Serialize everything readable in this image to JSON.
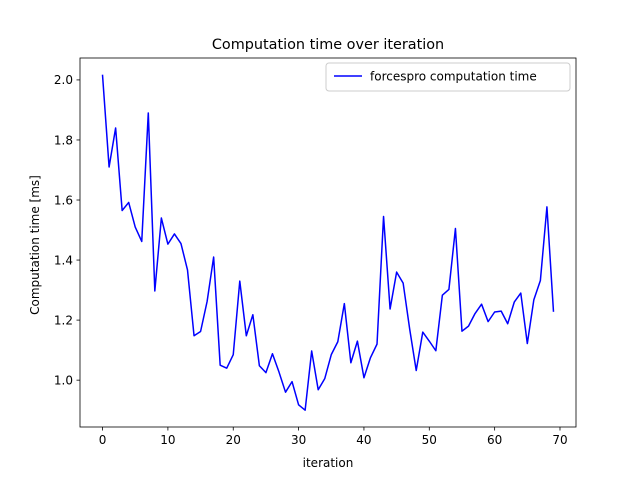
{
  "chart_data": {
    "type": "line",
    "title": "Computation time over iteration",
    "xlabel": "iteration",
    "ylabel": "Computation time [ms]",
    "xlim": [
      -3.45,
      72.45
    ],
    "ylim": [
      0.844,
      2.073
    ],
    "xticks": [
      0,
      10,
      20,
      30,
      40,
      50,
      60,
      70
    ],
    "yticks": [
      1.0,
      1.2,
      1.4,
      1.6,
      1.8,
      2.0
    ],
    "ytick_labels": [
      "1.0",
      "1.2",
      "1.4",
      "1.6",
      "1.8",
      "2.0"
    ],
    "grid": false,
    "legend_position": "upper right",
    "series": [
      {
        "name": "forcespro computation time",
        "color": "#0000ff",
        "x": [
          0,
          1,
          2,
          3,
          4,
          5,
          6,
          7,
          8,
          9,
          10,
          11,
          12,
          13,
          14,
          15,
          16,
          17,
          18,
          19,
          20,
          21,
          22,
          23,
          24,
          25,
          26,
          27,
          28,
          29,
          30,
          31,
          32,
          33,
          34,
          35,
          36,
          37,
          38,
          39,
          40,
          41,
          42,
          43,
          44,
          45,
          46,
          47,
          48,
          49,
          50,
          51,
          52,
          53,
          54,
          55,
          56,
          57,
          58,
          59,
          60,
          61,
          62,
          63,
          64,
          65,
          66,
          67,
          68,
          69
        ],
        "values": [
          2.015,
          1.71,
          1.84,
          1.565,
          1.592,
          1.51,
          1.462,
          1.89,
          1.297,
          1.54,
          1.453,
          1.487,
          1.455,
          1.367,
          1.148,
          1.162,
          1.262,
          1.41,
          1.05,
          1.04,
          1.085,
          1.33,
          1.148,
          1.218,
          1.048,
          1.025,
          1.088,
          1.027,
          0.96,
          0.995,
          0.918,
          0.9,
          1.097,
          0.968,
          1.005,
          1.085,
          1.128,
          1.255,
          1.058,
          1.13,
          1.008,
          1.075,
          1.12,
          1.545,
          1.237,
          1.36,
          1.323,
          1.17,
          1.032,
          1.16,
          1.13,
          1.098,
          1.283,
          1.302,
          1.505,
          1.163,
          1.18,
          1.222,
          1.253,
          1.195,
          1.227,
          1.23,
          1.188,
          1.26,
          1.29,
          1.122,
          1.268,
          1.332,
          1.577,
          1.23
        ]
      }
    ]
  }
}
